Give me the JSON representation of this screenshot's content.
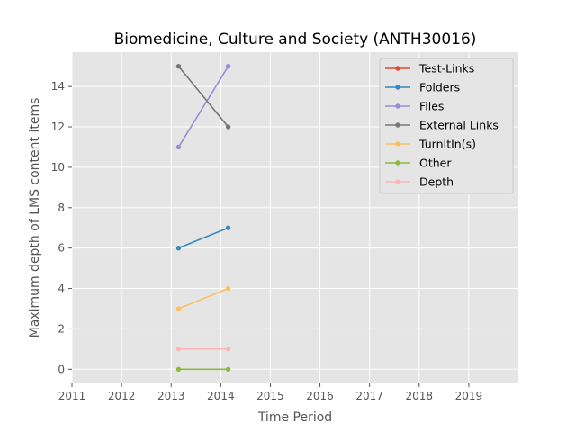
{
  "chart_data": {
    "type": "line",
    "title": "Biomedicine, Culture and Society (ANTH30016)",
    "xlabel": "Time Period",
    "ylabel": "Maximum depth of LMS content items",
    "x_ticks": [
      "2011",
      "2012",
      "2013",
      "2014",
      "2015",
      "2016",
      "2017",
      "2018",
      "2019"
    ],
    "y_ticks": [
      "0",
      "2",
      "4",
      "6",
      "8",
      "10",
      "12",
      "14"
    ],
    "xlim": [
      2011,
      2020
    ],
    "ylim": [
      -0.7,
      15.7
    ],
    "grid": true,
    "legend_position": "top-right",
    "x": [
      2013.15,
      2014.15
    ],
    "series": [
      {
        "name": "Test-Links",
        "color": "#E24A33",
        "values": [
          null,
          null
        ]
      },
      {
        "name": "Folders",
        "color": "#348ABD",
        "values": [
          6,
          7
        ]
      },
      {
        "name": "Files",
        "color": "#988ED5",
        "values": [
          11,
          15
        ]
      },
      {
        "name": "External Links",
        "color": "#777777",
        "values": [
          15,
          12
        ]
      },
      {
        "name": "TurnItIn(s)",
        "color": "#FBC15E",
        "values": [
          3,
          4
        ]
      },
      {
        "name": "Other",
        "color": "#8EBA42",
        "values": [
          0,
          0
        ]
      },
      {
        "name": "Depth",
        "color": "#FFB5B8",
        "values": [
          1,
          1
        ]
      }
    ]
  }
}
